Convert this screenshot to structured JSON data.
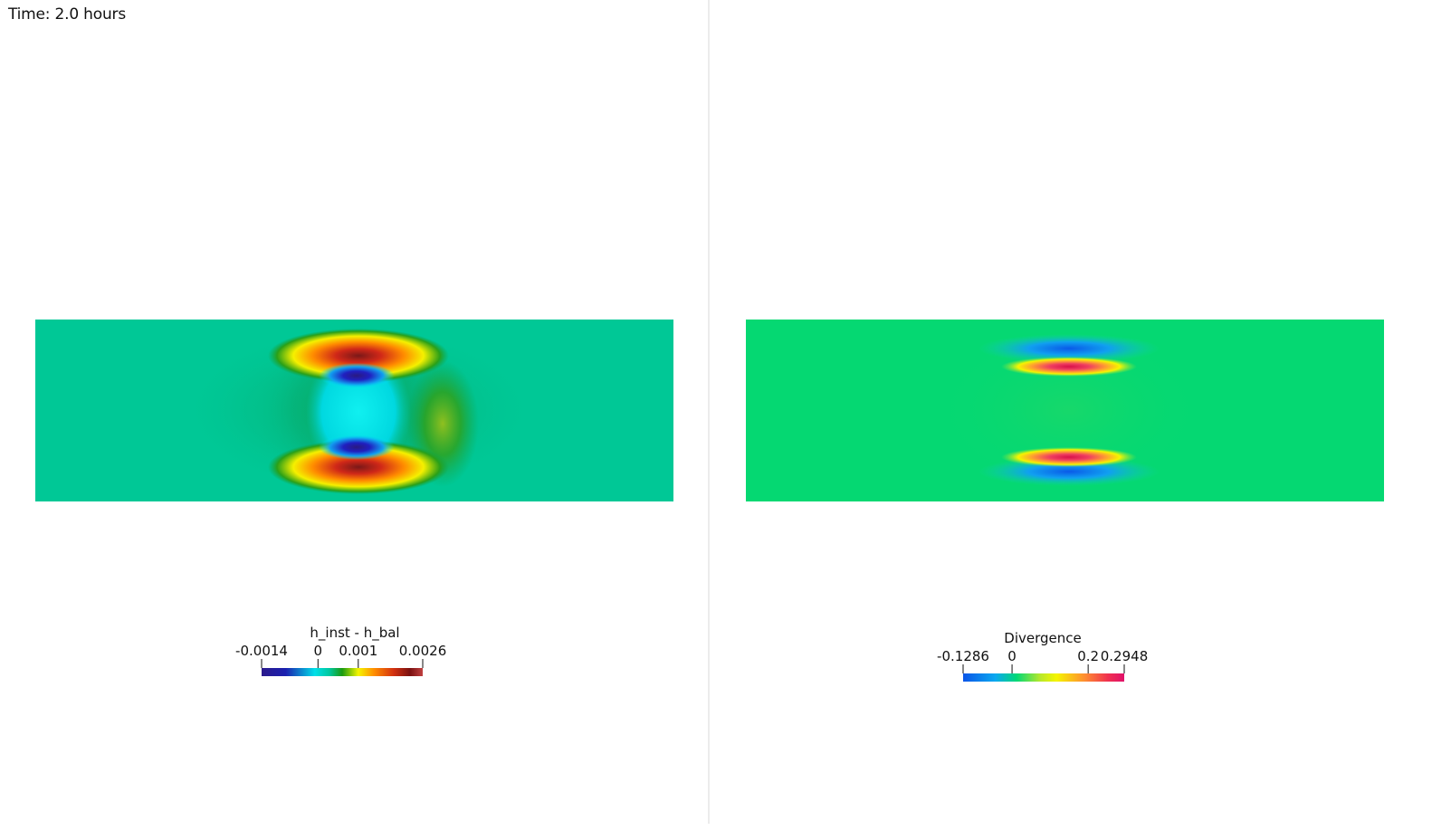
{
  "time_label": "Time: 2.0 hours",
  "left_panel": {
    "colorbar": {
      "title": "h_inst - h_bal",
      "min": -0.0014,
      "max": 0.0026,
      "ticks": [
        {
          "value": -0.0014,
          "label": "-0.0014"
        },
        {
          "value": 0,
          "label": "0"
        },
        {
          "value": 0.001,
          "label": "0.001"
        },
        {
          "value": 0.0026,
          "label": "0.0026"
        }
      ],
      "colormap": [
        "#2b1a8c",
        "#1b20b0",
        "#00e0e8",
        "#00c8a0",
        "#1a9a10",
        "#f5f500",
        "#ff8c00",
        "#d23010",
        "#7a1010",
        "#c04040"
      ]
    },
    "background_color": "#00c896"
  },
  "right_panel": {
    "colorbar": {
      "title": "Divergence",
      "min": -0.1286,
      "max": 0.2948,
      "ticks": [
        {
          "value": -0.1286,
          "label": "-0.1286"
        },
        {
          "value": 0,
          "label": "0"
        },
        {
          "value": 0.2,
          "label": "0.2"
        },
        {
          "value": 0.2948,
          "label": "0.2948"
        }
      ],
      "colormap": [
        "#0a55e8",
        "#0aa8f0",
        "#00d878",
        "#b8e82a",
        "#f5f500",
        "#ff9030",
        "#f03050",
        "#e0106a"
      ]
    },
    "background_color": "#05d872"
  }
}
